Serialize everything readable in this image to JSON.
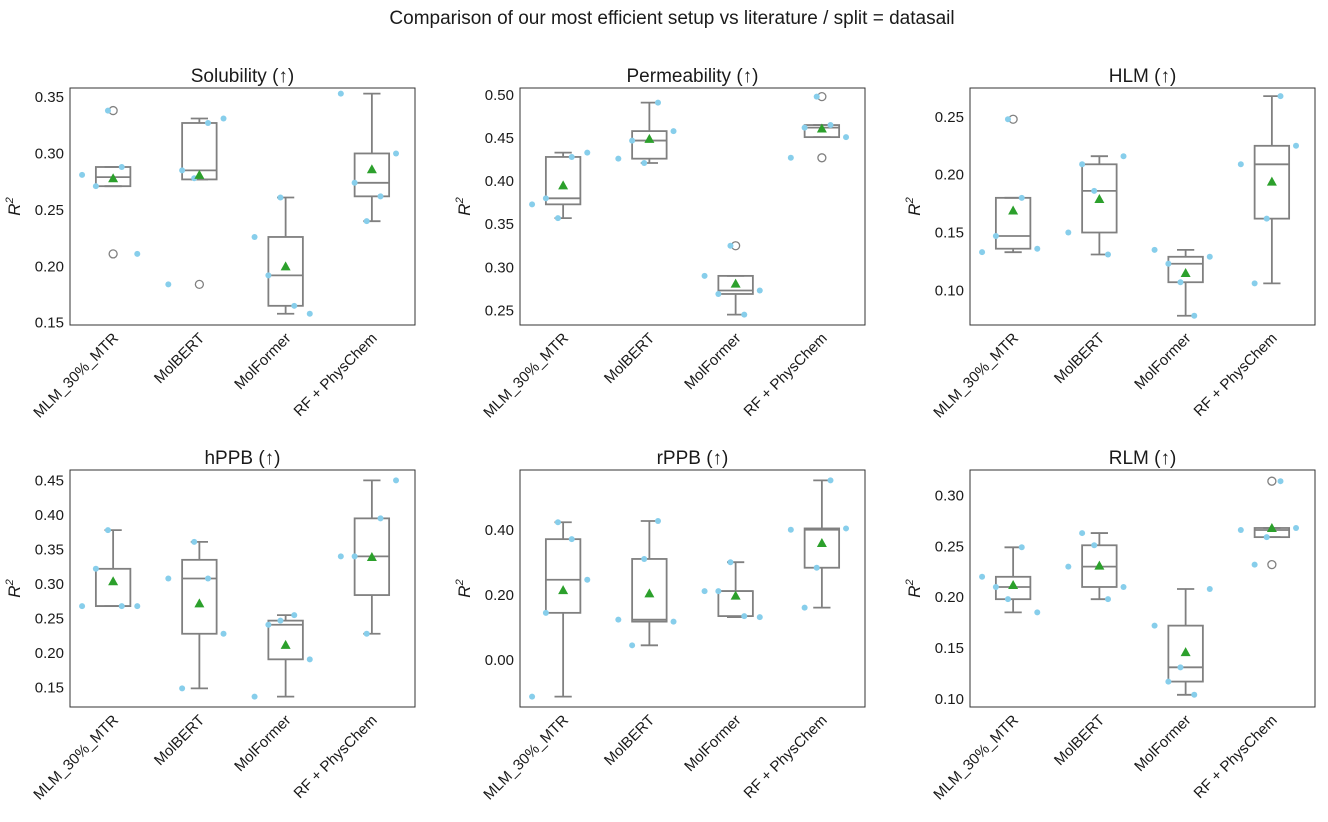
{
  "chart_data": {
    "title": "Comparison of our most efficient setup vs literature / split = datasail",
    "categories": [
      "MLM_30%_MTR",
      "MolBERT",
      "MolFormer",
      "RF + PhysChem"
    ],
    "colors": {
      "points": "#87ceeb",
      "mean": "#2ca02c",
      "box": "#808080"
    },
    "panels": [
      {
        "type": "box",
        "title": "Solubility (↑)",
        "ylabel": "R",
        "ylabel_sup": "2",
        "ylim": [
          0.148,
          0.358
        ],
        "yticks": [
          0.15,
          0.2,
          0.25,
          0.3,
          0.35
        ],
        "ytick_labels": [
          "0.15",
          "0.20",
          "0.25",
          "0.30",
          "0.35"
        ],
        "boxes": [
          {
            "q1": 0.271,
            "median": 0.279,
            "q3": 0.288,
            "whislo": 0.271,
            "whishi": 0.288,
            "mean": 0.278,
            "fliers": [
              0.338,
              0.211
            ],
            "points": [
              0.281,
              0.271,
              0.338,
              0.288,
              0.211
            ]
          },
          {
            "q1": 0.277,
            "median": 0.285,
            "q3": 0.327,
            "whislo": 0.277,
            "whishi": 0.331,
            "mean": 0.281,
            "fliers": [
              0.184
            ],
            "points": [
              0.184,
              0.285,
              0.278,
              0.327,
              0.331
            ]
          },
          {
            "q1": 0.165,
            "median": 0.192,
            "q3": 0.226,
            "whislo": 0.158,
            "whishi": 0.261,
            "mean": 0.2,
            "fliers": [],
            "points": [
              0.226,
              0.192,
              0.261,
              0.165,
              0.158
            ]
          },
          {
            "q1": 0.262,
            "median": 0.274,
            "q3": 0.3,
            "whislo": 0.24,
            "whishi": 0.353,
            "mean": 0.286,
            "fliers": [],
            "points": [
              0.353,
              0.274,
              0.24,
              0.262,
              0.3
            ]
          }
        ]
      },
      {
        "type": "box",
        "title": "Permeability (↑)",
        "ylabel": "R",
        "ylabel_sup": "2",
        "ylim": [
          0.233,
          0.508
        ],
        "yticks": [
          0.25,
          0.3,
          0.35,
          0.4,
          0.45,
          0.5
        ],
        "ytick_labels": [
          "0.25",
          "0.30",
          "0.35",
          "0.40",
          "0.45",
          "0.50"
        ],
        "boxes": [
          {
            "q1": 0.373,
            "median": 0.38,
            "q3": 0.428,
            "whislo": 0.357,
            "whishi": 0.433,
            "mean": 0.395,
            "fliers": [],
            "points": [
              0.373,
              0.38,
              0.357,
              0.428,
              0.433
            ]
          },
          {
            "q1": 0.426,
            "median": 0.447,
            "q3": 0.458,
            "whislo": 0.421,
            "whishi": 0.491,
            "mean": 0.449,
            "fliers": [],
            "points": [
              0.426,
              0.447,
              0.421,
              0.491,
              0.458
            ]
          },
          {
            "q1": 0.269,
            "median": 0.273,
            "q3": 0.29,
            "whislo": 0.245,
            "whishi": 0.29,
            "mean": 0.281,
            "fliers": [
              0.325
            ],
            "points": [
              0.29,
              0.269,
              0.325,
              0.245,
              0.273
            ]
          },
          {
            "q1": 0.451,
            "median": 0.462,
            "q3": 0.465,
            "whislo": 0.451,
            "whishi": 0.465,
            "mean": 0.461,
            "fliers": [
              0.498,
              0.427
            ],
            "points": [
              0.427,
              0.462,
              0.498,
              0.465,
              0.451
            ]
          }
        ]
      },
      {
        "type": "box",
        "title": "HLM (↑)",
        "ylabel": "R",
        "ylabel_sup": "2",
        "ylim": [
          0.07,
          0.275
        ],
        "yticks": [
          0.1,
          0.15,
          0.2,
          0.25
        ],
        "ytick_labels": [
          "0.10",
          "0.15",
          "0.20",
          "0.25"
        ],
        "boxes": [
          {
            "q1": 0.136,
            "median": 0.147,
            "q3": 0.18,
            "whislo": 0.133,
            "whishi": 0.18,
            "mean": 0.169,
            "fliers": [
              0.248
            ],
            "points": [
              0.133,
              0.147,
              0.248,
              0.18,
              0.136
            ]
          },
          {
            "q1": 0.15,
            "median": 0.186,
            "q3": 0.209,
            "whislo": 0.131,
            "whishi": 0.216,
            "mean": 0.179,
            "fliers": [],
            "points": [
              0.15,
              0.209,
              0.186,
              0.131,
              0.216
            ]
          },
          {
            "q1": 0.107,
            "median": 0.123,
            "q3": 0.129,
            "whislo": 0.078,
            "whishi": 0.135,
            "mean": 0.115,
            "fliers": [],
            "points": [
              0.135,
              0.123,
              0.107,
              0.078,
              0.129
            ]
          },
          {
            "q1": 0.162,
            "median": 0.209,
            "q3": 0.225,
            "whislo": 0.106,
            "whishi": 0.268,
            "mean": 0.194,
            "fliers": [],
            "points": [
              0.209,
              0.106,
              0.162,
              0.268,
              0.225
            ]
          }
        ]
      },
      {
        "type": "box",
        "title": "hPPB (↑)",
        "ylabel": "R",
        "ylabel_sup": "2",
        "ylim": [
          0.122,
          0.465
        ],
        "yticks": [
          0.15,
          0.2,
          0.25,
          0.3,
          0.35,
          0.4,
          0.45
        ],
        "ytick_labels": [
          "0.15",
          "0.20",
          "0.25",
          "0.30",
          "0.35",
          "0.40",
          "0.45"
        ],
        "boxes": [
          {
            "q1": 0.268,
            "median": 0.268,
            "q3": 0.322,
            "whislo": 0.268,
            "whishi": 0.378,
            "mean": 0.304,
            "fliers": [],
            "points": [
              0.268,
              0.322,
              0.378,
              0.268,
              0.268
            ]
          },
          {
            "q1": 0.228,
            "median": 0.308,
            "q3": 0.335,
            "whislo": 0.149,
            "whishi": 0.361,
            "mean": 0.272,
            "fliers": [],
            "points": [
              0.308,
              0.149,
              0.361,
              0.308,
              0.228
            ]
          },
          {
            "q1": 0.191,
            "median": 0.241,
            "q3": 0.247,
            "whislo": 0.137,
            "whishi": 0.255,
            "mean": 0.212,
            "fliers": [],
            "points": [
              0.137,
              0.241,
              0.247,
              0.255,
              0.191
            ]
          },
          {
            "q1": 0.284,
            "median": 0.34,
            "q3": 0.395,
            "whislo": 0.228,
            "whishi": 0.45,
            "mean": 0.339,
            "fliers": [],
            "points": [
              0.34,
              0.34,
              0.228,
              0.395,
              0.45
            ]
          }
        ]
      },
      {
        "type": "box",
        "title": "rPPB (↑)",
        "ylabel": "R",
        "ylabel_sup": "2",
        "ylim": [
          -0.145,
          0.585
        ],
        "yticks": [
          0.0,
          0.2,
          0.4
        ],
        "ytick_labels": [
          "0.00",
          "0.20",
          "0.40"
        ],
        "boxes": [
          {
            "q1": 0.145,
            "median": 0.247,
            "q3": 0.372,
            "whislo": -0.113,
            "whishi": 0.424,
            "mean": 0.215,
            "fliers": [],
            "points": [
              -0.113,
              0.145,
              0.424,
              0.372,
              0.247
            ]
          },
          {
            "q1": 0.118,
            "median": 0.124,
            "q3": 0.311,
            "whislo": 0.045,
            "whishi": 0.428,
            "mean": 0.205,
            "fliers": [],
            "points": [
              0.124,
              0.045,
              0.311,
              0.428,
              0.118
            ]
          },
          {
            "q1": 0.135,
            "median": 0.212,
            "q3": 0.212,
            "whislo": 0.132,
            "whishi": 0.301,
            "mean": 0.198,
            "fliers": [],
            "points": [
              0.212,
              0.212,
              0.301,
              0.135,
              0.132
            ]
          },
          {
            "q1": 0.284,
            "median": 0.401,
            "q3": 0.405,
            "whislo": 0.161,
            "whishi": 0.553,
            "mean": 0.36,
            "fliers": [],
            "points": [
              0.401,
              0.161,
              0.284,
              0.553,
              0.405
            ]
          }
        ]
      },
      {
        "type": "box",
        "title": "RLM (↑)",
        "ylabel": "R",
        "ylabel_sup": "2",
        "ylim": [
          0.092,
          0.325
        ],
        "yticks": [
          0.1,
          0.15,
          0.2,
          0.25,
          0.3
        ],
        "ytick_labels": [
          "0.10",
          "0.15",
          "0.20",
          "0.25",
          "0.30"
        ],
        "boxes": [
          {
            "q1": 0.198,
            "median": 0.21,
            "q3": 0.22,
            "whislo": 0.185,
            "whishi": 0.249,
            "mean": 0.212,
            "fliers": [],
            "points": [
              0.22,
              0.21,
              0.198,
              0.249,
              0.185
            ]
          },
          {
            "q1": 0.21,
            "median": 0.23,
            "q3": 0.251,
            "whislo": 0.198,
            "whishi": 0.263,
            "mean": 0.231,
            "fliers": [],
            "points": [
              0.23,
              0.263,
              0.251,
              0.198,
              0.21
            ]
          },
          {
            "q1": 0.117,
            "median": 0.131,
            "q3": 0.172,
            "whislo": 0.104,
            "whishi": 0.208,
            "mean": 0.146,
            "fliers": [],
            "points": [
              0.172,
              0.117,
              0.131,
              0.104,
              0.208
            ]
          },
          {
            "q1": 0.259,
            "median": 0.266,
            "q3": 0.268,
            "whislo": 0.259,
            "whishi": 0.268,
            "mean": 0.268,
            "fliers": [
              0.314,
              0.232
            ],
            "points": [
              0.266,
              0.232,
              0.259,
              0.314,
              0.268
            ]
          }
        ]
      }
    ]
  }
}
